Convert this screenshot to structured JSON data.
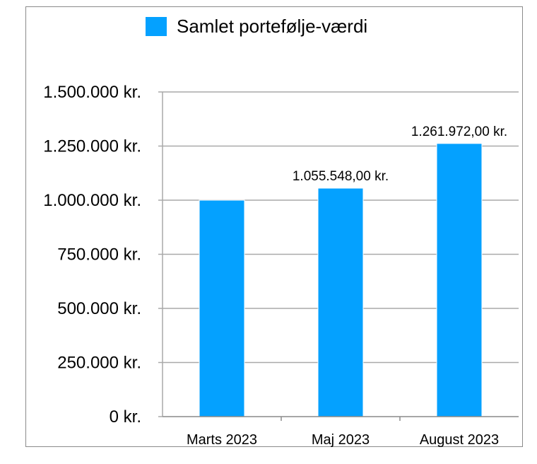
{
  "chart_data": {
    "type": "bar",
    "categories": [
      "Marts 2023",
      "Maj 2023",
      "August 2023"
    ],
    "series": [
      {
        "name": "Samlet portefølje-værdi",
        "values": [
          1000000,
          1055548,
          1261972
        ],
        "data_labels": [
          "",
          "1.055.548,00 kr.",
          "1.261.972,00 kr."
        ],
        "color": "#04A1FF"
      }
    ],
    "y_ticks": [
      "0 kr.",
      "250.000 kr.",
      "500.000 kr.",
      "750.000 kr.",
      "1.000.000 kr.",
      "1.250.000 kr.",
      "1.500.000 kr."
    ],
    "ylim": [
      0,
      1500000
    ],
    "grid": true,
    "legend_position": "top-center",
    "gridline_color": "#a9a9a9"
  }
}
